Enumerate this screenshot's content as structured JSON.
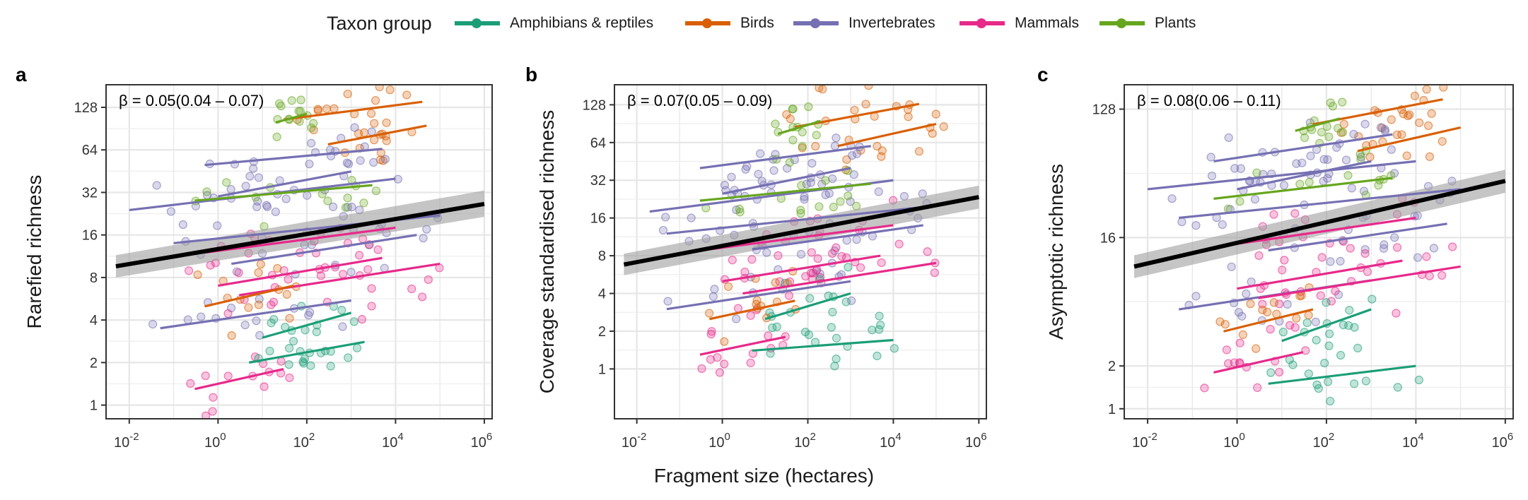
{
  "legend": {
    "title": "Taxon group",
    "items": [
      {
        "label": "Amphibians & reptiles",
        "color": "#1B9E77"
      },
      {
        "label": "Birds",
        "color": "#D95F02"
      },
      {
        "label": "Invertebrates",
        "color": "#7570B3"
      },
      {
        "label": "Mammals",
        "color": "#E7298A"
      },
      {
        "label": "Plants",
        "color": "#66A61E"
      }
    ]
  },
  "x_axis_title": "Fragment size (hectares)",
  "chart_data": [
    {
      "type": "scatter",
      "panel": "a",
      "ylabel": "Rarefied richness",
      "xscale": "log10",
      "yscale": "log2",
      "xlim": [
        0.003,
        1500000
      ],
      "ylim": [
        0.8,
        185
      ],
      "x_ticks": [
        0.01,
        1,
        100,
        10000,
        1000000
      ],
      "x_tick_labels": [
        [
          "10",
          "-2"
        ],
        [
          "10",
          "0"
        ],
        [
          "10",
          "2"
        ],
        [
          "10",
          "4"
        ],
        [
          "10",
          "6"
        ]
      ],
      "y_ticks": [
        1,
        2,
        4,
        8,
        16,
        32,
        64,
        128
      ],
      "y_tick_labels": [
        "1",
        "2",
        "4",
        "8",
        "16",
        "32",
        "64",
        "128"
      ],
      "grid": true,
      "annotation": "β = 0.05(0.04 – 0.07)",
      "overall_fit": {
        "x": [
          0.005,
          1000000
        ],
        "y": [
          9.6,
          26.5
        ],
        "ci_low": [
          8.0,
          21.5
        ],
        "ci_high": [
          11.5,
          33
        ]
      },
      "group_lines": [
        {
          "group": "Birds",
          "x": [
            30,
            40000
          ],
          "y": [
            105,
            140
          ]
        },
        {
          "group": "Birds",
          "x": [
            300,
            50000
          ],
          "y": [
            70,
            95
          ]
        },
        {
          "group": "Invertebrates",
          "x": [
            0.01,
            10000
          ],
          "y": [
            24,
            40
          ]
        },
        {
          "group": "Invertebrates",
          "x": [
            0.5,
            5000
          ],
          "y": [
            50,
            65
          ]
        },
        {
          "group": "Invertebrates",
          "x": [
            0.1,
            100000
          ],
          "y": [
            14,
            22
          ]
        },
        {
          "group": "Invertebrates",
          "x": [
            1,
            1000
          ],
          "y": [
            30,
            45
          ]
        },
        {
          "group": "Invertebrates",
          "x": [
            0.05,
            1000
          ],
          "y": [
            3.5,
            5.5
          ]
        },
        {
          "group": "Invertebrates",
          "x": [
            2,
            30000
          ],
          "y": [
            10,
            16
          ]
        },
        {
          "group": "Plants",
          "x": [
            20,
            100
          ],
          "y": [
            100,
            115
          ]
        },
        {
          "group": "Plants",
          "x": [
            0.3,
            3000
          ],
          "y": [
            28,
            36
          ]
        },
        {
          "group": "Mammals",
          "x": [
            0.5,
            10000
          ],
          "y": [
            12,
            18
          ]
        },
        {
          "group": "Mammals",
          "x": [
            1,
            5000
          ],
          "y": [
            7,
            11
          ]
        },
        {
          "group": "Mammals",
          "x": [
            0.3,
            30
          ],
          "y": [
            1.3,
            1.8
          ]
        },
        {
          "group": "Mammals",
          "x": [
            3,
            100000
          ],
          "y": [
            6,
            10
          ]
        },
        {
          "group": "Amphibians & reptiles",
          "x": [
            5,
            2000
          ],
          "y": [
            2,
            2.8
          ]
        },
        {
          "group": "Amphibians & reptiles",
          "x": [
            10,
            1000
          ],
          "y": [
            3,
            4.5
          ]
        },
        {
          "group": "Birds",
          "x": [
            0.5,
            50
          ],
          "y": [
            5,
            7
          ]
        }
      ]
    },
    {
      "type": "scatter",
      "panel": "b",
      "ylabel": "Coverage standardised richness",
      "xscale": "log10",
      "yscale": "log2",
      "xlim": [
        0.003,
        1500000
      ],
      "ylim": [
        0.4,
        185
      ],
      "x_ticks": [
        0.01,
        1,
        100,
        10000,
        1000000
      ],
      "x_tick_labels": [
        [
          "10",
          "-2"
        ],
        [
          "10",
          "0"
        ],
        [
          "10",
          "2"
        ],
        [
          "10",
          "4"
        ],
        [
          "10",
          "6"
        ]
      ],
      "y_ticks": [
        1,
        2,
        4,
        8,
        16,
        32,
        64,
        128
      ],
      "y_tick_labels": [
        "1",
        "2",
        "4",
        "8",
        "16",
        "32",
        "64",
        "128"
      ],
      "grid": true,
      "annotation": "β = 0.07(0.05 – 0.09)",
      "overall_fit": {
        "x": [
          0.005,
          1000000
        ],
        "y": [
          6.8,
          23.5
        ],
        "ci_low": [
          5.6,
          19
        ],
        "ci_high": [
          8.3,
          29
        ]
      },
      "group_lines": [
        {
          "group": "Birds",
          "x": [
            50,
            40000
          ],
          "y": [
            85,
            130
          ]
        },
        {
          "group": "Birds",
          "x": [
            500,
            100000
          ],
          "y": [
            60,
            90
          ]
        },
        {
          "group": "Invertebrates",
          "x": [
            0.02,
            10000
          ],
          "y": [
            18,
            32
          ]
        },
        {
          "group": "Invertebrates",
          "x": [
            0.3,
            3000
          ],
          "y": [
            40,
            60
          ]
        },
        {
          "group": "Invertebrates",
          "x": [
            0.05,
            100000
          ],
          "y": [
            12,
            20
          ]
        },
        {
          "group": "Invertebrates",
          "x": [
            1,
            1000
          ],
          "y": [
            25,
            40
          ]
        },
        {
          "group": "Invertebrates",
          "x": [
            0.05,
            1000
          ],
          "y": [
            3,
            5
          ]
        },
        {
          "group": "Invertebrates",
          "x": [
            5,
            50000
          ],
          "y": [
            9,
            14
          ]
        },
        {
          "group": "Plants",
          "x": [
            20,
            200
          ],
          "y": [
            75,
            95
          ]
        },
        {
          "group": "Plants",
          "x": [
            0.3,
            3000
          ],
          "y": [
            22,
            30
          ]
        },
        {
          "group": "Mammals",
          "x": [
            0.5,
            10000
          ],
          "y": [
            9,
            14
          ]
        },
        {
          "group": "Mammals",
          "x": [
            1,
            5000
          ],
          "y": [
            5,
            8
          ]
        },
        {
          "group": "Mammals",
          "x": [
            0.3,
            30
          ],
          "y": [
            1.3,
            1.8
          ]
        },
        {
          "group": "Mammals",
          "x": [
            3,
            100000
          ],
          "y": [
            4,
            7
          ]
        },
        {
          "group": "Amphibians & reptiles",
          "x": [
            5,
            10000
          ],
          "y": [
            1.4,
            1.7
          ]
        },
        {
          "group": "Amphibians & reptiles",
          "x": [
            10,
            1000
          ],
          "y": [
            2.5,
            4
          ]
        },
        {
          "group": "Birds",
          "x": [
            0.5,
            50
          ],
          "y": [
            2.5,
            3.5
          ]
        }
      ]
    },
    {
      "type": "scatter",
      "panel": "c",
      "ylabel": "Asymptotic richness",
      "xscale": "log10",
      "yscale": "log2",
      "xlim": [
        0.003,
        1500000
      ],
      "ylim": [
        0.85,
        190
      ],
      "x_ticks": [
        0.01,
        1,
        100,
        10000,
        1000000
      ],
      "x_tick_labels": [
        [
          "10",
          "-2"
        ],
        [
          "10",
          "0"
        ],
        [
          "10",
          "2"
        ],
        [
          "10",
          "4"
        ],
        [
          "10",
          "6"
        ]
      ],
      "y_ticks": [
        1,
        2,
        16,
        128
      ],
      "y_tick_labels": [
        "1",
        "2",
        "16",
        "128"
      ],
      "grid": true,
      "annotation": "β = 0.08(0.06 – 0.11)",
      "overall_fit": {
        "x": [
          0.005,
          1000000
        ],
        "y": [
          10,
          40
        ],
        "ci_low": [
          8.3,
          33
        ],
        "ci_high": [
          12,
          48
        ]
      },
      "group_lines": [
        {
          "group": "Birds",
          "x": [
            50,
            40000
          ],
          "y": [
            100,
            150
          ]
        },
        {
          "group": "Birds",
          "x": [
            500,
            100000
          ],
          "y": [
            65,
            95
          ]
        },
        {
          "group": "Invertebrates",
          "x": [
            0.01,
            10000
          ],
          "y": [
            35,
            55
          ]
        },
        {
          "group": "Invertebrates",
          "x": [
            0.3,
            3000
          ],
          "y": [
            55,
            85
          ]
        },
        {
          "group": "Invertebrates",
          "x": [
            0.05,
            100000
          ],
          "y": [
            22,
            35
          ]
        },
        {
          "group": "Invertebrates",
          "x": [
            1,
            1000
          ],
          "y": [
            35,
            55
          ]
        },
        {
          "group": "Invertebrates",
          "x": [
            0.05,
            1000
          ],
          "y": [
            5,
            8
          ]
        },
        {
          "group": "Invertebrates",
          "x": [
            5,
            50000
          ],
          "y": [
            13,
            20
          ]
        },
        {
          "group": "Plants",
          "x": [
            20,
            200
          ],
          "y": [
            90,
            110
          ]
        },
        {
          "group": "Plants",
          "x": [
            0.3,
            3000
          ],
          "y": [
            30,
            42
          ]
        },
        {
          "group": "Mammals",
          "x": [
            0.5,
            10000
          ],
          "y": [
            14,
            22
          ]
        },
        {
          "group": "Mammals",
          "x": [
            1,
            5000
          ],
          "y": [
            7,
            11
          ]
        },
        {
          "group": "Mammals",
          "x": [
            0.3,
            30
          ],
          "y": [
            1.8,
            2.5
          ]
        },
        {
          "group": "Mammals",
          "x": [
            3,
            100000
          ],
          "y": [
            6,
            10
          ]
        },
        {
          "group": "Amphibians & reptiles",
          "x": [
            5,
            10000
          ],
          "y": [
            1.5,
            2
          ]
        },
        {
          "group": "Amphibians & reptiles",
          "x": [
            10,
            1000
          ],
          "y": [
            3,
            5
          ]
        },
        {
          "group": "Birds",
          "x": [
            0.5,
            50
          ],
          "y": [
            3.5,
            5
          ]
        }
      ]
    }
  ]
}
